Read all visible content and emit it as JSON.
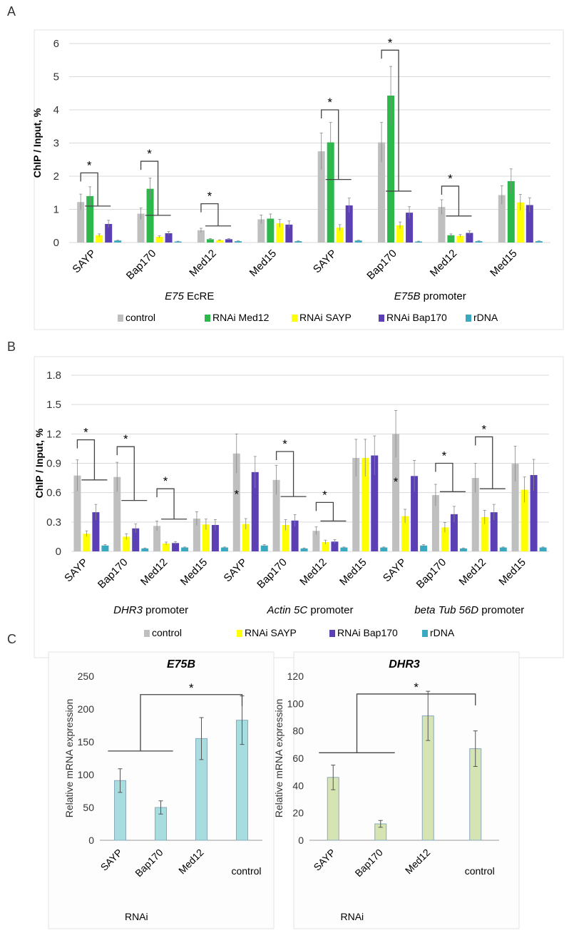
{
  "panel_labels": [
    "A",
    "B",
    "C"
  ],
  "chart_data": [
    {
      "type": "bar",
      "panel": "A",
      "ylabel": "ChIP / Input, %",
      "ylim": [
        0,
        6
      ],
      "yticks": [
        0,
        1,
        2,
        3,
        4,
        5,
        6
      ],
      "grid": true,
      "legend": "bottom",
      "categories": [
        "SAYP",
        "Bap170",
        "Med12",
        "Med15",
        "SAYP",
        "Bap170",
        "Med12",
        "Med15"
      ],
      "group_labels": [
        {
          "italic": "E75",
          "plain": "EcRE"
        },
        {
          "italic": "E75B",
          "plain": "promoter"
        }
      ],
      "series": [
        {
          "name": "control",
          "color": "#bfbfbf",
          "values": [
            1.22,
            0.87,
            0.37,
            0.7,
            2.75,
            3.02,
            1.07,
            1.43
          ],
          "errors": [
            0.24,
            0.17,
            0.06,
            0.13,
            0.55,
            0.6,
            0.22,
            0.28
          ]
        },
        {
          "name": "RNAi Med12",
          "color": "#2db84b",
          "values": [
            1.4,
            1.62,
            0.1,
            0.72,
            3.02,
            4.43,
            0.22,
            1.85
          ],
          "errors": [
            0.28,
            0.32,
            0.02,
            0.14,
            0.6,
            0.88,
            0.04,
            0.37
          ]
        },
        {
          "name": "RNAi SAYP",
          "color": "#ffff00",
          "values": [
            0.22,
            0.17,
            0.07,
            0.58,
            0.45,
            0.52,
            0.2,
            1.21
          ],
          "errors": [
            0.04,
            0.03,
            0.01,
            0.12,
            0.09,
            0.1,
            0.04,
            0.24
          ]
        },
        {
          "name": "RNAi Bap170",
          "color": "#5a3fb5",
          "values": [
            0.56,
            0.28,
            0.1,
            0.54,
            1.12,
            0.9,
            0.29,
            1.13
          ],
          "errors": [
            0.11,
            0.05,
            0.02,
            0.11,
            0.22,
            0.18,
            0.06,
            0.22
          ]
        },
        {
          "name": "rDNA",
          "color": "#3aa8bf",
          "values": [
            0.06,
            0.03,
            0.04,
            0.04,
            0.06,
            0.03,
            0.04,
            0.04
          ],
          "errors": [
            0.01,
            0.01,
            0.01,
            0.01,
            0.01,
            0.01,
            0.01,
            0.01
          ]
        }
      ],
      "significance": [
        {
          "group": 0,
          "text": "*",
          "top": 2.1,
          "low": 1.1
        },
        {
          "group": 1,
          "text": "*",
          "top": 2.45,
          "low": 0.82
        },
        {
          "group": 2,
          "text": "*",
          "top": 1.17,
          "low": 0.5
        },
        {
          "group": 4,
          "text": "*",
          "top": 4.0,
          "low": 1.9
        },
        {
          "group": 5,
          "text": "*",
          "top": 5.8,
          "low": 1.55
        },
        {
          "group": 6,
          "text": "*",
          "top": 1.7,
          "low": 0.8
        }
      ]
    },
    {
      "type": "bar",
      "panel": "B",
      "ylabel": "ChIP / Input, %",
      "ylim": [
        0,
        1.8
      ],
      "yticks": [
        "0",
        "0.3",
        "0.6",
        "0.9",
        "1.2",
        "1.5",
        "1.8"
      ],
      "grid": true,
      "legend": "bottom",
      "categories": [
        "SAYP",
        "Bap170",
        "Med12",
        "Med15",
        "SAYP",
        "Bap170",
        "Med12",
        "Med15",
        "SAYP",
        "Bap170",
        "Med12",
        "Med15"
      ],
      "group_labels": [
        {
          "italic": "DHR3",
          "plain": "promoter"
        },
        {
          "italic": "Actin 5C",
          "plain": "promoter"
        },
        {
          "italic": "beta Tub 56D",
          "plain": "promoter"
        }
      ],
      "series": [
        {
          "name": "control",
          "color": "#bfbfbf",
          "values": [
            0.775,
            0.76,
            0.26,
            0.335,
            1.0,
            0.73,
            0.21,
            0.955,
            1.2,
            0.575,
            0.75,
            0.895
          ],
          "errors": [
            0.16,
            0.15,
            0.05,
            0.07,
            0.2,
            0.15,
            0.04,
            0.19,
            0.24,
            0.11,
            0.15,
            0.18
          ]
        },
        {
          "name": "RNAi SAYP",
          "color": "#ffff00",
          "values": [
            0.18,
            0.15,
            0.08,
            0.275,
            0.28,
            0.27,
            0.095,
            0.955,
            0.36,
            0.245,
            0.35,
            0.63
          ],
          "errors": [
            0.03,
            0.03,
            0.015,
            0.055,
            0.055,
            0.055,
            0.02,
            0.19,
            0.07,
            0.05,
            0.07,
            0.13
          ]
        },
        {
          "name": "RNAi Bap170",
          "color": "#5a3fb5",
          "values": [
            0.4,
            0.235,
            0.085,
            0.27,
            0.81,
            0.315,
            0.1,
            0.98,
            0.77,
            0.38,
            0.4,
            0.78
          ],
          "errors": [
            0.08,
            0.045,
            0.015,
            0.055,
            0.16,
            0.06,
            0.02,
            0.2,
            0.16,
            0.08,
            0.08,
            0.16
          ]
        },
        {
          "name": "rDNA",
          "color": "#3aa8bf",
          "values": [
            0.06,
            0.03,
            0.04,
            0.04,
            0.06,
            0.03,
            0.04,
            0.04,
            0.06,
            0.03,
            0.04,
            0.04
          ],
          "errors": [
            0.01,
            0.005,
            0.005,
            0.005,
            0.01,
            0.005,
            0.005,
            0.005,
            0.01,
            0.005,
            0.005,
            0.005
          ]
        }
      ],
      "significance": [
        {
          "group": 0,
          "text": "*",
          "top": 1.14,
          "low": 0.73
        },
        {
          "group": 1,
          "text": "*",
          "top": 1.07,
          "low": 0.52
        },
        {
          "group": 2,
          "text": "*",
          "top": 0.64,
          "low": 0.33
        },
        {
          "group": 5,
          "text": "*",
          "top": 1.02,
          "low": 0.56
        },
        {
          "group": 6,
          "text": "*",
          "top": 0.5,
          "low": 0.31
        },
        {
          "group": 9,
          "text": "*",
          "top": 0.9,
          "low": 0.61
        },
        {
          "group": 10,
          "text": "*",
          "top": 1.17,
          "low": 0.64
        }
      ],
      "extra_stars": [
        {
          "group": 4,
          "value": 0.6,
          "text": "*"
        },
        {
          "group": 8,
          "value": 0.73,
          "text": "*"
        }
      ]
    },
    {
      "type": "bar",
      "panel": "C-left",
      "title": "E75B",
      "ylabel": "Relative mRNA expression",
      "xlabel": "RNAi",
      "ylim": [
        0,
        250
      ],
      "yticks": [
        0,
        50,
        100,
        150,
        200,
        250
      ],
      "categories": [
        "SAYP",
        "Bap170",
        "Med12",
        "control"
      ],
      "color": "#a8dde0",
      "values": [
        91,
        50,
        155,
        183
      ],
      "errors": [
        18,
        10,
        32,
        37
      ],
      "significance": {
        "text": "*",
        "level": 222,
        "low": 136
      }
    },
    {
      "type": "bar",
      "panel": "C-right",
      "title": "DHR3",
      "ylabel": "Relative mRNA expression",
      "xlabel": "RNAi",
      "ylim": [
        0,
        120
      ],
      "yticks": [
        0,
        20,
        40,
        60,
        80,
        100,
        120
      ],
      "categories": [
        "SAYP",
        "Bap170",
        "Med12",
        "control"
      ],
      "color": "#d6e4b4",
      "values": [
        46,
        12,
        91,
        67
      ],
      "errors": [
        9,
        2.5,
        18,
        13
      ],
      "significance": {
        "text": "*",
        "level": 107,
        "low": 64
      }
    }
  ]
}
